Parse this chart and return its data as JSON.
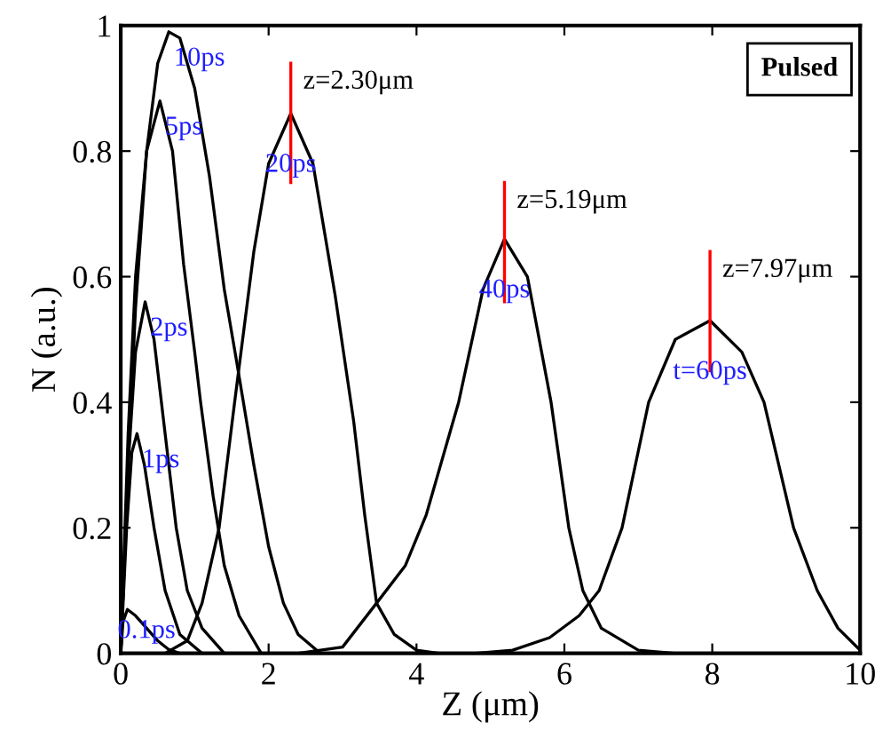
{
  "chart_data": {
    "type": "line",
    "xlabel": "Z (μm)",
    "ylabel": "N (a.u.)",
    "xlim": [
      0,
      10
    ],
    "ylim": [
      0,
      1
    ],
    "xticks": [
      0,
      2,
      4,
      6,
      8,
      10
    ],
    "yticks": [
      0,
      0.2,
      0.4,
      0.6,
      0.8,
      1
    ],
    "grid": false,
    "legend": false,
    "marker": "none",
    "line_style": "solid",
    "series": [
      {
        "name": "0.1ps",
        "color": "#000000",
        "x": [
          0,
          0.03,
          0.09,
          0.2,
          0.35,
          0.5,
          0.65,
          0.8
        ],
        "values": [
          0,
          0.05,
          0.07,
          0.06,
          0.04,
          0.02,
          0.006,
          0
        ]
      },
      {
        "name": "1ps",
        "color": "#000000",
        "x": [
          0,
          0.08,
          0.15,
          0.22,
          0.32,
          0.45,
          0.6,
          0.8,
          1.1
        ],
        "values": [
          0,
          0.2,
          0.32,
          0.35,
          0.3,
          0.2,
          0.1,
          0.03,
          0
        ]
      },
      {
        "name": "2ps",
        "color": "#000000",
        "x": [
          0,
          0.1,
          0.2,
          0.33,
          0.45,
          0.6,
          0.75,
          0.9,
          1.1,
          1.4
        ],
        "values": [
          0,
          0.3,
          0.48,
          0.56,
          0.5,
          0.35,
          0.2,
          0.1,
          0.04,
          0
        ]
      },
      {
        "name": "5ps",
        "color": "#000000",
        "x": [
          0,
          0.1,
          0.2,
          0.35,
          0.53,
          0.7,
          0.85,
          1.0,
          1.08,
          1.25,
          1.4,
          1.6,
          1.9
        ],
        "values": [
          0,
          0.35,
          0.6,
          0.8,
          0.88,
          0.8,
          0.62,
          0.48,
          0.4,
          0.25,
          0.14,
          0.06,
          0
        ]
      },
      {
        "name": "10ps",
        "color": "#000000",
        "x": [
          0,
          0.1,
          0.2,
          0.35,
          0.5,
          0.65,
          0.8,
          1.0,
          1.2,
          1.4,
          1.56,
          1.8,
          2.0,
          2.2,
          2.4,
          2.7
        ],
        "values": [
          0,
          0.3,
          0.55,
          0.8,
          0.94,
          0.99,
          0.98,
          0.9,
          0.76,
          0.58,
          0.47,
          0.3,
          0.17,
          0.08,
          0.03,
          0
        ]
      },
      {
        "name": "20ps",
        "color": "#000000",
        "x": [
          0.6,
          0.9,
          1.1,
          1.33,
          1.54,
          1.8,
          2.0,
          2.3,
          2.6,
          2.9,
          3.15,
          3.3,
          3.46,
          3.7,
          4.0,
          4.3
        ],
        "values": [
          0,
          0.02,
          0.08,
          0.2,
          0.4,
          0.64,
          0.78,
          0.86,
          0.78,
          0.57,
          0.37,
          0.22,
          0.08,
          0.03,
          0.005,
          0
        ]
      },
      {
        "name": "40ps",
        "color": "#000000",
        "x": [
          2.4,
          3.0,
          3.46,
          3.85,
          4.13,
          4.57,
          4.9,
          5.19,
          5.5,
          5.82,
          6.06,
          6.25,
          6.5,
          7.0,
          7.5
        ],
        "values": [
          0,
          0.01,
          0.08,
          0.14,
          0.22,
          0.4,
          0.58,
          0.66,
          0.6,
          0.4,
          0.2,
          0.1,
          0.04,
          0.005,
          0
        ]
      },
      {
        "name": "t=60ps",
        "color": "#000000",
        "x": [
          4.8,
          5.3,
          5.8,
          6.2,
          6.47,
          6.78,
          7.14,
          7.5,
          7.97,
          8.4,
          8.7,
          9.1,
          9.42,
          9.7,
          10
        ],
        "values": [
          0,
          0.005,
          0.025,
          0.06,
          0.1,
          0.2,
          0.4,
          0.5,
          0.53,
          0.48,
          0.4,
          0.2,
          0.1,
          0.04,
          0.005
        ]
      },
      {
        "color": "#ff0000",
        "x": [
          2.3,
          2.3
        ],
        "values": [
          0.75,
          0.94
        ]
      },
      {
        "color": "#ff0000",
        "x": [
          5.19,
          5.19
        ],
        "values": [
          0.56,
          0.75
        ]
      },
      {
        "color": "#ff0000",
        "x": [
          7.97,
          7.97
        ],
        "values": [
          0.45,
          0.64
        ]
      }
    ],
    "annotations": [
      {
        "text": "z=2.30μm",
        "x": 2.3,
        "y": 0.91
      },
      {
        "text": "z=5.19μm",
        "x": 5.19,
        "y": 0.72
      },
      {
        "text": "z=7.97μm",
        "x": 7.97,
        "y": 0.61
      },
      "Pulsed"
    ]
  }
}
